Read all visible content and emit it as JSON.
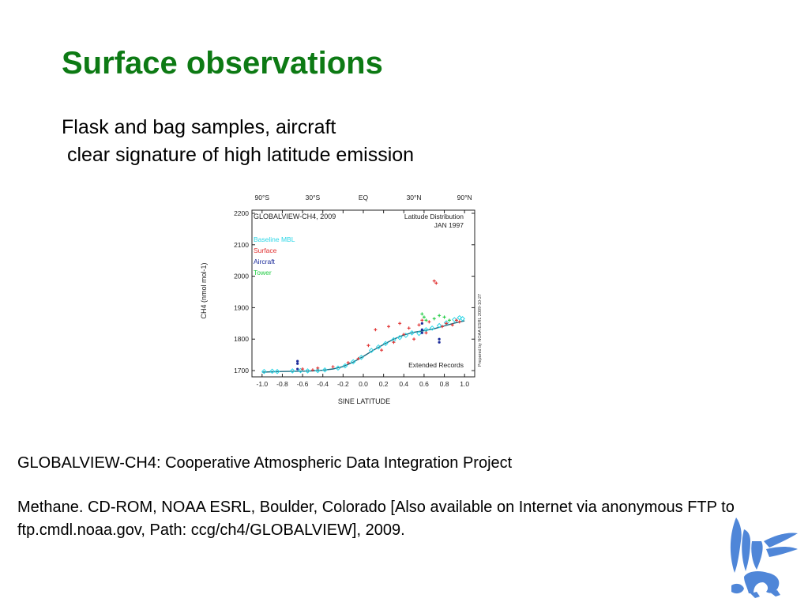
{
  "slide": {
    "title": "Surface observations",
    "subtitle_line1": "Flask and bag samples, aircraft",
    "subtitle_line2": " clear signature of high latitude emission",
    "citation_line1": "GLOBALVIEW-CH4: Cooperative Atmospheric Data Integration Project",
    "citation_line2": " Methane. CD-ROM, NOAA ESRL, Boulder, Colorado [Also available on Internet via anonymous FTP to ftp.cmdl.noaa.gov, Path: ccg/ch4/GLOBALVIEW], 2009."
  },
  "colors": {
    "title": "#0d7a14",
    "baseline": "#2ad6e6",
    "surface": "#e03030",
    "aircraft": "#1a2a9a",
    "tower": "#22cc44",
    "logo": "#4f86d8"
  },
  "chart_data": {
    "type": "scatter",
    "title": "GLOBALVIEW-CH4, 2009",
    "subtitle": "Latitude Distribution",
    "date_label": "JAN 1997",
    "corner_label": "Extended Records",
    "side_label": "Prepared by NOAA ESRL 2009-10-27",
    "xlabel": "SINE LATITUDE",
    "ylabel": "CH4 (nmol mol-1)",
    "xlim": [
      -1.1,
      1.1
    ],
    "ylim": [
      1680,
      2210
    ],
    "x_ticks": [
      -1.0,
      -0.8,
      -0.6,
      -0.4,
      -0.2,
      0.0,
      0.2,
      0.4,
      0.6,
      0.8,
      1.0
    ],
    "x_tick_labels": [
      "-1.0",
      "-0.8",
      "-0.6",
      "-0.4",
      "-0.2",
      "0.0",
      "0.2",
      "0.4",
      "0.6",
      "0.8",
      "1.0"
    ],
    "y_ticks": [
      1700,
      1800,
      1900,
      2000,
      2100,
      2200
    ],
    "y_tick_labels": [
      "1700",
      "1800",
      "1900",
      "2000",
      "2100",
      "2200"
    ],
    "top_axis": [
      {
        "label": "90°S",
        "x": -1.0
      },
      {
        "label": "30°S",
        "x": -0.5
      },
      {
        "label": "EQ",
        "x": 0.0
      },
      {
        "label": "30°N",
        "x": 0.5
      },
      {
        "label": "90°N",
        "x": 1.0
      }
    ],
    "legend": [
      {
        "name": "Baseline MBL",
        "color_key": "baseline"
      },
      {
        "name": "Surface",
        "color_key": "surface"
      },
      {
        "name": "Aircraft",
        "color_key": "aircraft"
      },
      {
        "name": "Tower",
        "color_key": "tower"
      }
    ],
    "legend_position": "top-left",
    "curve": {
      "name": "Baseline MBL fit",
      "x": [
        -1.0,
        -0.8,
        -0.6,
        -0.5,
        -0.4,
        -0.3,
        -0.2,
        -0.1,
        0.0,
        0.1,
        0.2,
        0.3,
        0.4,
        0.5,
        0.6,
        0.7,
        0.8,
        0.9,
        1.0
      ],
      "y": [
        1695,
        1697,
        1698,
        1699,
        1701,
        1705,
        1713,
        1727,
        1745,
        1765,
        1783,
        1800,
        1813,
        1822,
        1827,
        1833,
        1842,
        1851,
        1858
      ]
    },
    "series": [
      {
        "name": "Baseline MBL",
        "color_key": "baseline",
        "marker": "diamond",
        "x": [
          -0.98,
          -0.9,
          -0.85,
          -0.7,
          -0.62,
          -0.55,
          -0.45,
          -0.38,
          -0.25,
          -0.18,
          -0.1,
          -0.02,
          0.08,
          0.15,
          0.22,
          0.3,
          0.36,
          0.42,
          0.48,
          0.55,
          0.62,
          0.68,
          0.75,
          0.82,
          0.9,
          0.95,
          0.98
        ],
        "y": [
          1697,
          1698,
          1697,
          1699,
          1700,
          1699,
          1700,
          1702,
          1708,
          1715,
          1728,
          1742,
          1764,
          1775,
          1786,
          1798,
          1805,
          1812,
          1820,
          1818,
          1830,
          1835,
          1843,
          1852,
          1862,
          1868,
          1865
        ]
      },
      {
        "name": "Surface",
        "color_key": "surface",
        "marker": "plus",
        "x": [
          -0.6,
          -0.5,
          -0.45,
          -0.3,
          -0.15,
          -0.05,
          0.05,
          0.12,
          0.18,
          0.25,
          0.3,
          0.36,
          0.4,
          0.45,
          0.5,
          0.55,
          0.58,
          0.62,
          0.65,
          0.7,
          0.72,
          0.78,
          0.82,
          0.88,
          0.92,
          0.95
        ],
        "y": [
          1705,
          1702,
          1708,
          1712,
          1725,
          1738,
          1780,
          1830,
          1765,
          1840,
          1790,
          1850,
          1815,
          1835,
          1800,
          1845,
          1860,
          1820,
          1855,
          1985,
          1978,
          1840,
          1850,
          1845,
          1860,
          1855
        ]
      },
      {
        "name": "Aircraft",
        "color_key": "aircraft",
        "marker": "circle",
        "x": [
          -0.65,
          -0.65,
          -0.65,
          0.58,
          0.58,
          0.58,
          0.75,
          0.75
        ],
        "y": [
          1730,
          1722,
          1705,
          1850,
          1820,
          1830,
          1790,
          1800
        ]
      },
      {
        "name": "Tower",
        "color_key": "tower",
        "marker": "plus",
        "x": [
          0.58,
          0.6,
          0.62,
          0.7,
          0.75,
          0.8,
          0.85
        ],
        "y": [
          1880,
          1870,
          1860,
          1865,
          1875,
          1870,
          1860
        ]
      }
    ]
  }
}
